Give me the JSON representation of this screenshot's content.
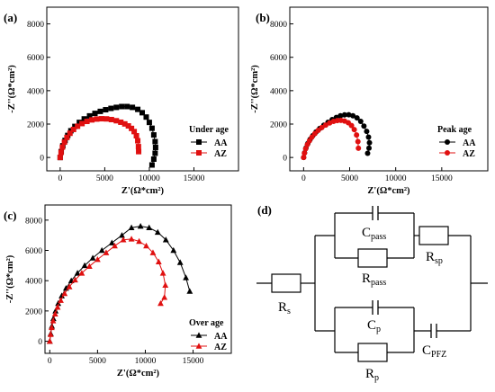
{
  "chart_data": [
    {
      "panel": "(a)",
      "type": "scatter",
      "xlabel": "Z'(Ω*cm²)",
      "ylabel": "-Z''(Ω*cm²)",
      "xlim": [
        -1500,
        20000
      ],
      "ylim": [
        -800,
        9000
      ],
      "xticks": [
        0,
        5000,
        10000,
        15000
      ],
      "yticks": [
        0,
        2000,
        4000,
        6000,
        8000
      ],
      "legend_title": "Under age",
      "legend_position": "bottom-right",
      "series": [
        {
          "name": "AA",
          "color": "#000000",
          "marker": "square",
          "x": [
            0,
            120,
            300,
            550,
            850,
            1200,
            1650,
            2150,
            2700,
            3300,
            3900,
            4500,
            5100,
            5700,
            6300,
            6900,
            7500,
            8100,
            8700,
            9200,
            9650,
            10000,
            10300,
            10500,
            10650,
            10700,
            10650,
            10500,
            10300
          ],
          "y": [
            0,
            350,
            700,
            1020,
            1320,
            1600,
            1860,
            2100,
            2310,
            2490,
            2640,
            2760,
            2860,
            2940,
            3000,
            3050,
            3050,
            3000,
            2880,
            2680,
            2420,
            2100,
            1750,
            1350,
            950,
            600,
            250,
            -100,
            -450
          ]
        },
        {
          "name": "AZ",
          "color": "#e01010",
          "marker": "square",
          "x": [
            0,
            100,
            250,
            480,
            760,
            1100,
            1500,
            1950,
            2450,
            3000,
            3550,
            4100,
            4650,
            5200,
            5750,
            6300,
            6800,
            7250,
            7650,
            8000,
            8300,
            8550,
            8700,
            8780,
            8800
          ],
          "y": [
            0,
            300,
            620,
            920,
            1200,
            1450,
            1680,
            1870,
            2030,
            2160,
            2250,
            2300,
            2320,
            2310,
            2270,
            2200,
            2110,
            2010,
            1890,
            1740,
            1550,
            1300,
            1000,
            650,
            350
          ]
        }
      ]
    },
    {
      "panel": "(b)",
      "type": "scatter",
      "xlabel": "Z'(Ω*cm²)",
      "ylabel": "-Z''(Ω*cm²)",
      "xlim": [
        -1500,
        20000
      ],
      "ylim": [
        -800,
        9000
      ],
      "xticks": [
        0,
        5000,
        10000,
        15000
      ],
      "yticks": [
        0,
        2000,
        4000,
        6000,
        8000
      ],
      "legend_title": "Peak age",
      "legend_position": "bottom-right",
      "series": [
        {
          "name": "AA",
          "color": "#000000",
          "marker": "circle",
          "x": [
            0,
            100,
            250,
            450,
            700,
            1000,
            1350,
            1750,
            2200,
            2650,
            3100,
            3550,
            4000,
            4450,
            4900,
            5350,
            5800,
            6200,
            6550,
            6850,
            7050,
            7150,
            7100,
            6950
          ],
          "y": [
            0,
            280,
            560,
            830,
            1080,
            1310,
            1530,
            1740,
            1930,
            2110,
            2270,
            2400,
            2500,
            2550,
            2560,
            2500,
            2370,
            2160,
            1880,
            1560,
            1220,
            880,
            560,
            250
          ]
        },
        {
          "name": "AZ",
          "color": "#e01010",
          "marker": "circle",
          "x": [
            0,
            90,
            220,
            400,
            630,
            900,
            1220,
            1580,
            1980,
            2400,
            2830,
            3250,
            3650,
            4050,
            4450,
            4850,
            5200,
            5500,
            5750,
            5900,
            5950
          ],
          "y": [
            0,
            260,
            520,
            770,
            1000,
            1220,
            1430,
            1620,
            1790,
            1940,
            2070,
            2160,
            2210,
            2220,
            2180,
            2080,
            1910,
            1670,
            1350,
            950,
            550
          ]
        }
      ]
    },
    {
      "panel": "(c)",
      "type": "scatter",
      "xlabel": "Z'(Ω*cm²)",
      "ylabel": "-Z''(Ω*cm²)",
      "xlim": [
        -500,
        19000
      ],
      "ylim": [
        -800,
        9000
      ],
      "xticks": [
        0,
        5000,
        10000,
        15000
      ],
      "yticks": [
        0,
        2000,
        4000,
        6000,
        8000
      ],
      "legend_title": "Over age",
      "legend_position": "bottom-right",
      "series": [
        {
          "name": "AA",
          "color": "#000000",
          "marker": "triangle",
          "x": [
            0,
            100,
            220,
            380,
            600,
            880,
            1250,
            1700,
            2250,
            2900,
            3650,
            4500,
            5450,
            6500,
            7550,
            8550,
            9500,
            10400,
            11300,
            12150,
            12950,
            13650,
            14250,
            14650
          ],
          "y": [
            0,
            500,
            1000,
            1500,
            2000,
            2500,
            3000,
            3500,
            4000,
            4500,
            5000,
            5500,
            6000,
            6500,
            7000,
            7500,
            7600,
            7500,
            7200,
            6700,
            6000,
            5200,
            4200,
            3300
          ]
        },
        {
          "name": "AZ",
          "color": "#e01010",
          "marker": "triangle",
          "x": [
            0,
            90,
            200,
            350,
            560,
            820,
            1150,
            1550,
            2050,
            2650,
            3350,
            4150,
            5000,
            5900,
            6800,
            7700,
            8550,
            9350,
            10100,
            10800,
            11400,
            11850,
            12100,
            12000,
            11600
          ],
          "y": [
            0,
            450,
            900,
            1350,
            1800,
            2250,
            2700,
            3150,
            3600,
            4050,
            4500,
            4950,
            5400,
            5850,
            6300,
            6700,
            6750,
            6600,
            6300,
            5850,
            5250,
            4500,
            3700,
            2900,
            2500
          ]
        }
      ]
    }
  ],
  "circuit": {
    "panel_label": "(d)",
    "labels": {
      "rs": {
        "main": "R",
        "sub": "s"
      },
      "cpass": {
        "main": "C",
        "sub": "pass"
      },
      "rpass": {
        "main": "R",
        "sub": "pass"
      },
      "rsp": {
        "main": "R",
        "sub": "sp"
      },
      "cp": {
        "main": "C",
        "sub": "p"
      },
      "rp": {
        "main": "R",
        "sub": "p"
      },
      "cpfz": {
        "main": "C",
        "sub": "PFZ"
      }
    }
  }
}
